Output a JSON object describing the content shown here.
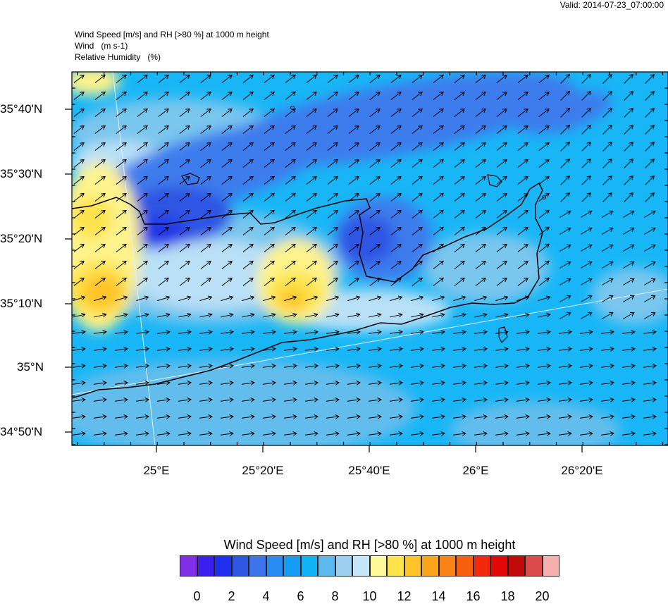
{
  "valid_label": "Valid: 2014-07-23_07:00:00",
  "header_lines": [
    "Wind Speed [m/s] and RH [>80 %] at 1000 m height",
    "Wind   (m s-1)",
    "Relative Humidity   (%)"
  ],
  "lat_labels": [
    "35°40'N",
    "35°30'N",
    "35°20'N",
    "35°10'N",
    "35°N",
    "34°50'N"
  ],
  "lon_labels": [
    "25°E",
    "25°20'E",
    "25°40'E",
    "26°E",
    "26°20'E"
  ],
  "colorbar": {
    "title": "Wind Speed [m/s] and RH [>80 %] at 1000 m height",
    "colors": [
      "#7f2fe8",
      "#3a1ff0",
      "#1e30ee",
      "#2f55e3",
      "#3d74ec",
      "#2a8cf3",
      "#169cf5",
      "#13b2f7",
      "#5db8ee",
      "#9dd0f0",
      "#c5e6f8",
      "#fefa9a",
      "#fde34c",
      "#fec42a",
      "#fba31b",
      "#f98314",
      "#f6600e",
      "#f3280a",
      "#e30808",
      "#c20a0a",
      "#dd4c4c",
      "#f6b0b0"
    ],
    "tick_labels": [
      "0",
      "2",
      "4",
      "6",
      "8",
      "10",
      "12",
      "14",
      "16",
      "18",
      "20"
    ]
  },
  "icons": {
    "arrows": "wind-arrow-icon"
  }
}
